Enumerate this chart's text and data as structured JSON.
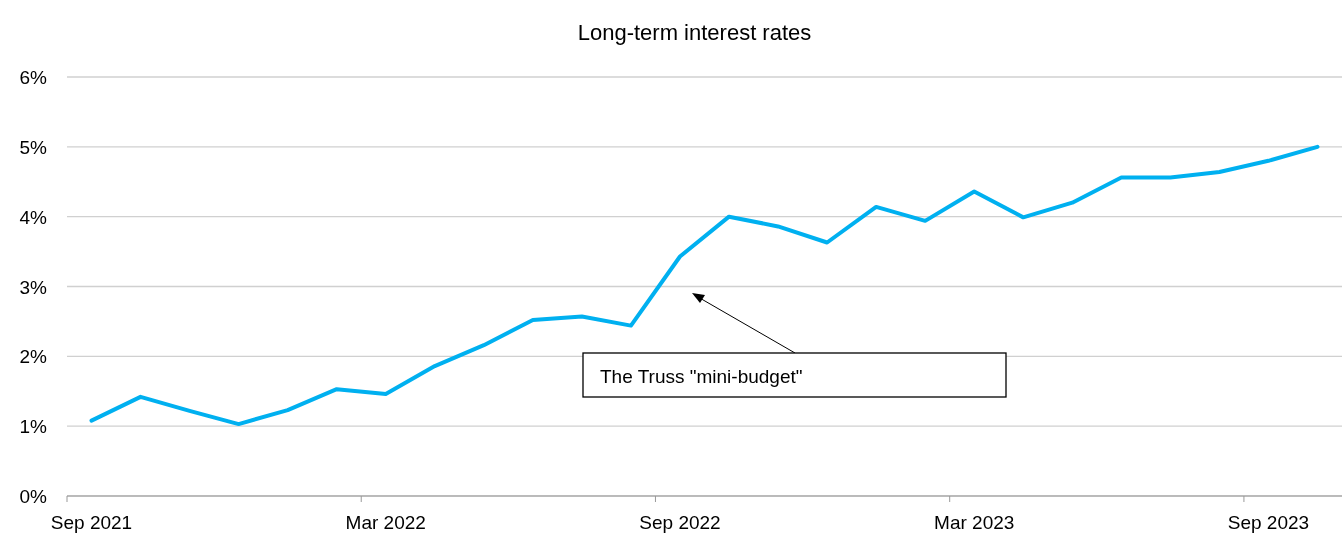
{
  "chart_data": {
    "type": "line",
    "title": "Long-term interest rates",
    "categories": [
      "Sep 2021",
      null,
      null,
      null,
      null,
      null,
      "Mar 2022",
      null,
      null,
      null,
      null,
      null,
      "Sep 2022",
      null,
      null,
      null,
      null,
      null,
      "Mar 2023",
      null,
      null,
      null,
      null,
      null,
      "Sep 2023",
      null
    ],
    "series": [
      {
        "color": "#00b0f0",
        "values": [
          1.08,
          1.42,
          1.22,
          1.03,
          1.23,
          1.53,
          1.46,
          1.86,
          2.16,
          2.52,
          2.57,
          2.44,
          3.43,
          4.0,
          3.86,
          3.63,
          4.14,
          3.94,
          4.36,
          3.99,
          4.2,
          4.56,
          4.56,
          4.64,
          4.8,
          5.0
        ]
      }
    ],
    "ylim": [
      0,
      6
    ],
    "yticks": [
      {
        "value": 0,
        "label": "0%"
      },
      {
        "value": 1,
        "label": "1%"
      },
      {
        "value": 2,
        "label": "2%"
      },
      {
        "value": 3,
        "label": "3%"
      },
      {
        "value": 4,
        "label": "4%"
      },
      {
        "value": 5,
        "label": "5%"
      },
      {
        "value": 6,
        "label": "6%"
      }
    ],
    "grid": "y",
    "marker": "none",
    "line_style": "solid",
    "annotations": [
      "The Truss \"mini-budget\""
    ]
  }
}
